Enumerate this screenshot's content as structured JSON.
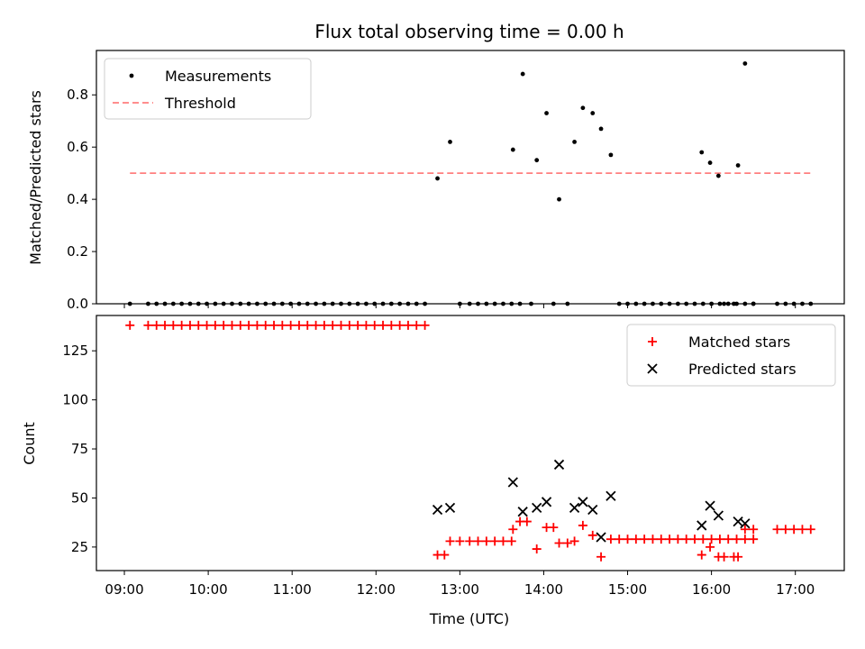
{
  "chart_data": [
    {
      "type": "scatter",
      "title": "Flux total observing time = 0.00 h",
      "xlabel": "",
      "ylabel": "Matched/Predicted stars",
      "xlim": [
        "08:40",
        "17:35"
      ],
      "ylim": [
        0,
        0.97
      ],
      "yticks": [
        0.0,
        0.2,
        0.4,
        0.6,
        0.8
      ],
      "ytick_labels": [
        "0.0",
        "0.2",
        "0.4",
        "0.6",
        "0.8"
      ],
      "legend_position": "top-left",
      "series": [
        {
          "name": "Measurements",
          "kind": "scatter",
          "color": "#000000",
          "points": [
            [
              "09:04",
              0
            ],
            [
              "09:17",
              0
            ],
            [
              "09:23",
              0
            ],
            [
              "09:29",
              0
            ],
            [
              "09:35",
              0
            ],
            [
              "09:41",
              0
            ],
            [
              "09:47",
              0
            ],
            [
              "09:53",
              0
            ],
            [
              "09:59",
              0
            ],
            [
              "10:05",
              0
            ],
            [
              "10:11",
              0
            ],
            [
              "10:17",
              0
            ],
            [
              "10:23",
              0
            ],
            [
              "10:29",
              0
            ],
            [
              "10:35",
              0
            ],
            [
              "10:41",
              0
            ],
            [
              "10:47",
              0
            ],
            [
              "10:53",
              0
            ],
            [
              "10:59",
              0
            ],
            [
              "11:05",
              0
            ],
            [
              "11:11",
              0
            ],
            [
              "11:17",
              0
            ],
            [
              "11:23",
              0
            ],
            [
              "11:29",
              0
            ],
            [
              "11:35",
              0
            ],
            [
              "11:41",
              0
            ],
            [
              "11:47",
              0
            ],
            [
              "11:53",
              0
            ],
            [
              "11:59",
              0
            ],
            [
              "12:05",
              0
            ],
            [
              "12:11",
              0
            ],
            [
              "12:17",
              0
            ],
            [
              "12:23",
              0
            ],
            [
              "12:29",
              0
            ],
            [
              "12:35",
              0
            ],
            [
              "12:44",
              0.48
            ],
            [
              "12:53",
              0.62
            ],
            [
              "13:00",
              0
            ],
            [
              "13:07",
              0
            ],
            [
              "13:13",
              0
            ],
            [
              "13:19",
              0
            ],
            [
              "13:25",
              0
            ],
            [
              "13:31",
              0
            ],
            [
              "13:37",
              0
            ],
            [
              "13:43",
              0
            ],
            [
              "13:38",
              0.59
            ],
            [
              "13:45",
              0.88
            ],
            [
              "13:51",
              0
            ],
            [
              "13:55",
              0.55
            ],
            [
              "14:02",
              0.73
            ],
            [
              "14:07",
              0
            ],
            [
              "14:11",
              0.4
            ],
            [
              "14:17",
              0
            ],
            [
              "14:22",
              0.62
            ],
            [
              "14:28",
              0.75
            ],
            [
              "14:35",
              0.73
            ],
            [
              "14:41",
              0.67
            ],
            [
              "14:48",
              0.57
            ],
            [
              "14:54",
              0
            ],
            [
              "15:00",
              0
            ],
            [
              "15:06",
              0
            ],
            [
              "15:12",
              0
            ],
            [
              "15:18",
              0
            ],
            [
              "15:24",
              0
            ],
            [
              "15:30",
              0
            ],
            [
              "15:36",
              0
            ],
            [
              "15:42",
              0
            ],
            [
              "15:48",
              0
            ],
            [
              "15:54",
              0
            ],
            [
              "16:00",
              0
            ],
            [
              "16:06",
              0
            ],
            [
              "16:12",
              0
            ],
            [
              "16:18",
              0
            ],
            [
              "16:24",
              0
            ],
            [
              "16:30",
              0
            ],
            [
              "15:53",
              0.58
            ],
            [
              "15:59",
              0.54
            ],
            [
              "16:05",
              0.49
            ],
            [
              "16:09",
              0
            ],
            [
              "16:16",
              0
            ],
            [
              "16:19",
              0.53
            ],
            [
              "16:24",
              0.92
            ],
            [
              "16:30",
              0
            ],
            [
              "16:47",
              0
            ],
            [
              "16:53",
              0
            ],
            [
              "16:59",
              0
            ],
            [
              "17:05",
              0
            ],
            [
              "17:11",
              0
            ]
          ]
        },
        {
          "name": "Threshold",
          "kind": "line",
          "color": "#ff7f7f",
          "style": "dashed",
          "points": [
            [
              "09:04",
              0.5
            ],
            [
              "17:11",
              0.5
            ]
          ]
        }
      ]
    },
    {
      "type": "scatter",
      "title": "",
      "xlabel": "Time (UTC)",
      "ylabel": "Count",
      "xlim": [
        "08:40",
        "17:35"
      ],
      "ylim": [
        13,
        143
      ],
      "yticks": [
        25,
        50,
        75,
        100,
        125
      ],
      "ytick_labels": [
        "25",
        "50",
        "75",
        "100",
        "125"
      ],
      "xticks": [
        "09:00",
        "10:00",
        "11:00",
        "12:00",
        "13:00",
        "14:00",
        "15:00",
        "16:00",
        "17:00"
      ],
      "legend_position": "top-right",
      "series": [
        {
          "name": "Matched stars",
          "marker": "plus",
          "color": "#ff0000",
          "points": [
            [
              "09:04",
              138
            ],
            [
              "09:17",
              138
            ],
            [
              "09:23",
              138
            ],
            [
              "09:29",
              138
            ],
            [
              "09:35",
              138
            ],
            [
              "09:41",
              138
            ],
            [
              "09:47",
              138
            ],
            [
              "09:53",
              138
            ],
            [
              "09:59",
              138
            ],
            [
              "10:05",
              138
            ],
            [
              "10:11",
              138
            ],
            [
              "10:17",
              138
            ],
            [
              "10:23",
              138
            ],
            [
              "10:29",
              138
            ],
            [
              "10:35",
              138
            ],
            [
              "10:41",
              138
            ],
            [
              "10:47",
              138
            ],
            [
              "10:53",
              138
            ],
            [
              "10:59",
              138
            ],
            [
              "11:05",
              138
            ],
            [
              "11:11",
              138
            ],
            [
              "11:17",
              138
            ],
            [
              "11:23",
              138
            ],
            [
              "11:29",
              138
            ],
            [
              "11:35",
              138
            ],
            [
              "11:41",
              138
            ],
            [
              "11:47",
              138
            ],
            [
              "11:53",
              138
            ],
            [
              "11:59",
              138
            ],
            [
              "12:05",
              138
            ],
            [
              "12:11",
              138
            ],
            [
              "12:17",
              138
            ],
            [
              "12:23",
              138
            ],
            [
              "12:29",
              138
            ],
            [
              "12:35",
              138
            ],
            [
              "12:44",
              21
            ],
            [
              "12:49",
              21
            ],
            [
              "12:53",
              28
            ],
            [
              "13:00",
              28
            ],
            [
              "13:07",
              28
            ],
            [
              "13:13",
              28
            ],
            [
              "13:19",
              28
            ],
            [
              "13:25",
              28
            ],
            [
              "13:31",
              28
            ],
            [
              "13:37",
              28
            ],
            [
              "13:38",
              34
            ],
            [
              "13:43",
              38
            ],
            [
              "13:48",
              38
            ],
            [
              "13:55",
              24
            ],
            [
              "14:02",
              35
            ],
            [
              "14:07",
              35
            ],
            [
              "14:11",
              27
            ],
            [
              "14:17",
              27
            ],
            [
              "14:22",
              28
            ],
            [
              "14:28",
              36
            ],
            [
              "14:35",
              31
            ],
            [
              "14:41",
              20
            ],
            [
              "14:48",
              29
            ],
            [
              "14:54",
              29
            ],
            [
              "15:00",
              29
            ],
            [
              "15:06",
              29
            ],
            [
              "15:12",
              29
            ],
            [
              "15:18",
              29
            ],
            [
              "15:24",
              29
            ],
            [
              "15:30",
              29
            ],
            [
              "15:36",
              29
            ],
            [
              "15:42",
              29
            ],
            [
              "15:48",
              29
            ],
            [
              "15:54",
              29
            ],
            [
              "16:00",
              29
            ],
            [
              "16:06",
              29
            ],
            [
              "16:12",
              29
            ],
            [
              "16:18",
              29
            ],
            [
              "16:24",
              29
            ],
            [
              "16:30",
              29
            ],
            [
              "15:53",
              21
            ],
            [
              "15:59",
              25
            ],
            [
              "16:05",
              20
            ],
            [
              "16:09",
              20
            ],
            [
              "16:16",
              20
            ],
            [
              "16:19",
              20
            ],
            [
              "16:24",
              34
            ],
            [
              "16:30",
              34
            ],
            [
              "16:47",
              34
            ],
            [
              "16:53",
              34
            ],
            [
              "16:59",
              34
            ],
            [
              "17:05",
              34
            ],
            [
              "17:11",
              34
            ]
          ]
        },
        {
          "name": "Predicted stars",
          "marker": "x",
          "color": "#000000",
          "points": [
            [
              "12:44",
              44
            ],
            [
              "12:53",
              45
            ],
            [
              "13:38",
              58
            ],
            [
              "13:45",
              43
            ],
            [
              "13:55",
              45
            ],
            [
              "14:02",
              48
            ],
            [
              "14:11",
              67
            ],
            [
              "14:22",
              45
            ],
            [
              "14:28",
              48
            ],
            [
              "14:35",
              44
            ],
            [
              "14:41",
              30
            ],
            [
              "14:48",
              51
            ],
            [
              "15:53",
              36
            ],
            [
              "15:59",
              46
            ],
            [
              "16:05",
              41
            ],
            [
              "16:19",
              38
            ],
            [
              "16:24",
              37
            ]
          ]
        }
      ]
    }
  ]
}
